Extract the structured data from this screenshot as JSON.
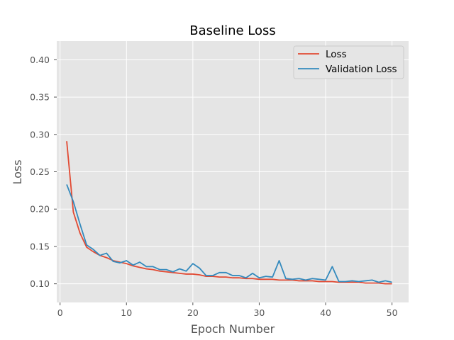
{
  "chart_data": {
    "type": "line",
    "title": "Baseline Loss",
    "xlabel": "Epoch Number",
    "ylabel": "Loss",
    "xlim": [
      -0.5,
      52.5
    ],
    "ylim": [
      0.075,
      0.425
    ],
    "xticks": [
      0,
      10,
      20,
      30,
      40,
      50
    ],
    "yticks": [
      0.1,
      0.15,
      0.2,
      0.25,
      0.3,
      0.35,
      0.4
    ],
    "grid": true,
    "legend_position": "top-right",
    "x": [
      1,
      2,
      3,
      4,
      5,
      6,
      7,
      8,
      9,
      10,
      11,
      12,
      13,
      14,
      15,
      16,
      17,
      18,
      19,
      20,
      21,
      22,
      23,
      24,
      25,
      26,
      27,
      28,
      29,
      30,
      31,
      32,
      33,
      34,
      35,
      36,
      37,
      38,
      39,
      40,
      41,
      42,
      43,
      44,
      45,
      46,
      47,
      48,
      49,
      50
    ],
    "series": [
      {
        "name": "Loss",
        "color": "#E24A33",
        "values": [
          0.291,
          0.196,
          0.168,
          0.149,
          0.143,
          0.138,
          0.135,
          0.131,
          0.129,
          0.127,
          0.124,
          0.122,
          0.12,
          0.119,
          0.117,
          0.116,
          0.115,
          0.114,
          0.113,
          0.113,
          0.112,
          0.11,
          0.11,
          0.109,
          0.109,
          0.108,
          0.108,
          0.107,
          0.107,
          0.106,
          0.106,
          0.106,
          0.105,
          0.105,
          0.105,
          0.104,
          0.104,
          0.104,
          0.103,
          0.103,
          0.103,
          0.102,
          0.102,
          0.102,
          0.102,
          0.101,
          0.101,
          0.101,
          0.1,
          0.1
        ]
      },
      {
        "name": "Validation Loss",
        "color": "#348ABD",
        "values": [
          0.233,
          0.21,
          0.18,
          0.152,
          0.146,
          0.138,
          0.141,
          0.13,
          0.128,
          0.131,
          0.125,
          0.129,
          0.123,
          0.123,
          0.119,
          0.119,
          0.116,
          0.12,
          0.117,
          0.127,
          0.121,
          0.111,
          0.111,
          0.115,
          0.115,
          0.111,
          0.111,
          0.108,
          0.114,
          0.108,
          0.11,
          0.109,
          0.131,
          0.107,
          0.106,
          0.107,
          0.105,
          0.107,
          0.106,
          0.105,
          0.123,
          0.103,
          0.103,
          0.104,
          0.103,
          0.104,
          0.105,
          0.102,
          0.104,
          0.102
        ]
      }
    ]
  },
  "style": {
    "plot_background": "#E5E5E5",
    "grid_color": "#FFFFFF"
  }
}
